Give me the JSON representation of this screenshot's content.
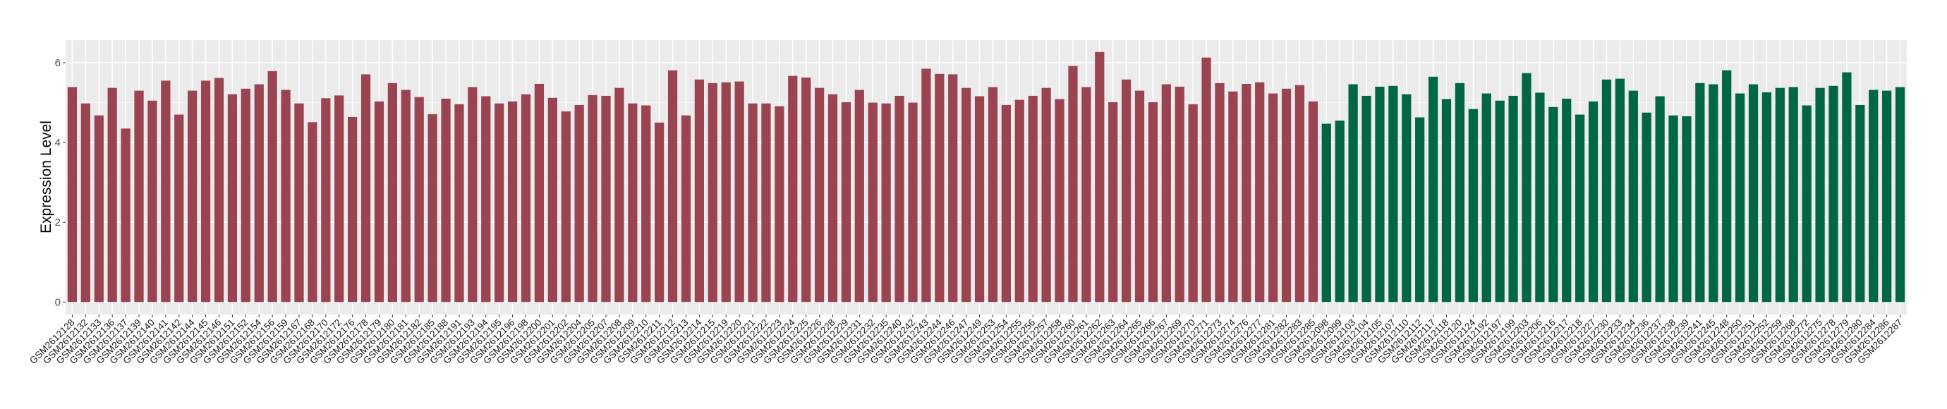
{
  "chart_data": {
    "type": "bar",
    "title": "",
    "xlabel": "",
    "ylabel": "Expression Level",
    "ylim": [
      0,
      6.55
    ],
    "yticks": [
      0,
      2,
      4,
      6
    ],
    "grid": true,
    "legend": "none",
    "colors": {
      "group1": "#9A4351",
      "group2": "#006644",
      "panel": "#EBEBEB",
      "grid": "#FFFFFF"
    },
    "categories": [
      "GSM2612128",
      "GSM2612132",
      "GSM2612133",
      "GSM2612136",
      "GSM2612137",
      "GSM2612139",
      "GSM2612140",
      "GSM2612141",
      "GSM2612142",
      "GSM2612144",
      "GSM2612145",
      "GSM2612146",
      "GSM2612151",
      "GSM2612152",
      "GSM2612154",
      "GSM2612156",
      "GSM2612159",
      "GSM2612167",
      "GSM2612168",
      "GSM2612170",
      "GSM2612172",
      "GSM2612176",
      "GSM2612178",
      "GSM2612179",
      "GSM2612180",
      "GSM2612181",
      "GSM2612182",
      "GSM2612185",
      "GSM2612188",
      "GSM2612191",
      "GSM2612193",
      "GSM2612194",
      "GSM2612195",
      "GSM2612196",
      "GSM2612198",
      "GSM2612200",
      "GSM2612201",
      "GSM2612202",
      "GSM2612204",
      "GSM2612205",
      "GSM2612207",
      "GSM2612208",
      "GSM2612209",
      "GSM2612210",
      "GSM2612211",
      "GSM2612212",
      "GSM2612213",
      "GSM2612214",
      "GSM2612215",
      "GSM2612219",
      "GSM2612220",
      "GSM2612221",
      "GSM2612222",
      "GSM2612223",
      "GSM2612224",
      "GSM2612225",
      "GSM2612226",
      "GSM2612228",
      "GSM2612229",
      "GSM2612231",
      "GSM2612232",
      "GSM2612235",
      "GSM2612240",
      "GSM2612242",
      "GSM2612243",
      "GSM2612244",
      "GSM2612246",
      "GSM2612247",
      "GSM2612249",
      "GSM2612253",
      "GSM2612254",
      "GSM2612255",
      "GSM2612256",
      "GSM2612257",
      "GSM2612258",
      "GSM2612260",
      "GSM2612261",
      "GSM2612262",
      "GSM2612263",
      "GSM2612264",
      "GSM2612265",
      "GSM2612266",
      "GSM2612267",
      "GSM2612269",
      "GSM2612270",
      "GSM2612271",
      "GSM2612273",
      "GSM2612274",
      "GSM2612276",
      "GSM2612277",
      "GSM2612281",
      "GSM2612282",
      "GSM2612283",
      "GSM2612285",
      "GSM2612098",
      "GSM2612099",
      "GSM2612103",
      "GSM2612104",
      "GSM2612105",
      "GSM2612107",
      "GSM2612110",
      "GSM2612112",
      "GSM2612117",
      "GSM2612118",
      "GSM2612120",
      "GSM2612124",
      "GSM2612192",
      "GSM2612197",
      "GSM2612199",
      "GSM2612203",
      "GSM2612206",
      "GSM2612216",
      "GSM2612217",
      "GSM2612218",
      "GSM2612227",
      "GSM2612230",
      "GSM2612233",
      "GSM2612234",
      "GSM2612236",
      "GSM2612237",
      "GSM2612238",
      "GSM2612239",
      "GSM2612241",
      "GSM2612245",
      "GSM2612248",
      "GSM2612250",
      "GSM2612251",
      "GSM2612252",
      "GSM2612259",
      "GSM2612268",
      "GSM2612272",
      "GSM2612275",
      "GSM2612278",
      "GSM2612279",
      "GSM2612280",
      "GSM2612284",
      "GSM2612286",
      "GSM2612287"
    ],
    "values": [
      5.39,
      4.98,
      4.68,
      5.37,
      4.35,
      5.3,
      5.05,
      5.55,
      4.7,
      5.3,
      5.55,
      5.62,
      5.21,
      5.35,
      5.46,
      5.79,
      5.32,
      4.98,
      4.51,
      5.11,
      5.18,
      4.64,
      5.71,
      5.03,
      5.49,
      5.32,
      5.14,
      4.71,
      5.1,
      4.96,
      5.39,
      5.16,
      4.98,
      5.03,
      5.21,
      5.47,
      5.12,
      4.78,
      4.94,
      5.19,
      5.17,
      5.37,
      4.98,
      4.93,
      4.5,
      5.81,
      4.68,
      5.58,
      5.49,
      5.51,
      5.53,
      4.98,
      4.98,
      4.91,
      5.67,
      5.63,
      5.37,
      5.21,
      5.01,
      5.32,
      5.0,
      4.98,
      5.17,
      5.0,
      5.85,
      5.72,
      5.71,
      5.37,
      5.16,
      5.39,
      4.94,
      5.07,
      5.17,
      5.37,
      5.09,
      5.92,
      5.39,
      6.27,
      5.01,
      5.58,
      5.3,
      5.01,
      5.46,
      5.4,
      4.96,
      6.13,
      5.49,
      5.28,
      5.47,
      5.51,
      5.23,
      5.35,
      5.44,
      5.03,
      4.47,
      4.55,
      5.46,
      5.17,
      5.4,
      5.42,
      5.21,
      4.63,
      5.65,
      5.09,
      5.49,
      4.84,
      5.23,
      5.05,
      5.17,
      5.74,
      5.25,
      4.89,
      5.1,
      4.7,
      5.03,
      5.58,
      5.6,
      5.3,
      4.75,
      5.16,
      4.68,
      4.66,
      5.49,
      5.46,
      5.81,
      5.23,
      5.46,
      5.26,
      5.37,
      5.39,
      4.93,
      5.37,
      5.42,
      5.76,
      4.94,
      5.32,
      5.3,
      5.39
    ],
    "groups_count": [
      94,
      44
    ]
  }
}
